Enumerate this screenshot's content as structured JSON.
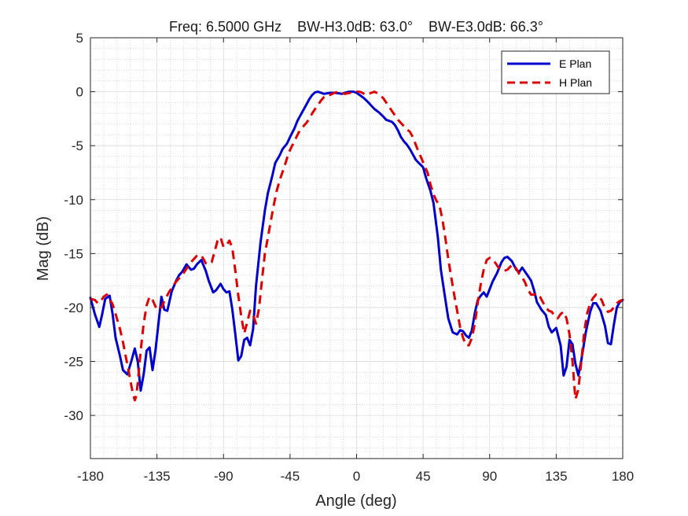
{
  "chart_data": {
    "type": "line",
    "title": "Freq: 6.5000 GHz    BW-H3.0dB: 63.0°    BW-E3.0dB: 66.3°",
    "xlabel": "Angle (deg)",
    "ylabel": "Mag (dB)",
    "xlim": [
      -180,
      180
    ],
    "ylim": [
      -34,
      5
    ],
    "xticks": [
      -180,
      -135,
      -90,
      -45,
      0,
      45,
      90,
      135,
      180
    ],
    "yticks": [
      5,
      0,
      -5,
      -10,
      -15,
      -20,
      -25,
      -30
    ],
    "grid": true,
    "minor_grid": true,
    "legend_position": "top-right",
    "series": [
      {
        "name": "E Plan",
        "color": "#0000cc",
        "style": "solid",
        "x": [
          -180,
          -177,
          -174,
          -172,
          -170,
          -167,
          -165,
          -163,
          -160,
          -158,
          -155,
          -152,
          -150,
          -148,
          -146,
          -144,
          -142,
          -140,
          -138,
          -136,
          -134,
          -132,
          -130,
          -128,
          -125,
          -122,
          -120,
          -118,
          -115,
          -112,
          -110,
          -108,
          -105,
          -102,
          -100,
          -97,
          -95,
          -92,
          -90,
          -88,
          -86,
          -84,
          -82,
          -80,
          -78,
          -76,
          -74,
          -72,
          -70,
          -68,
          -65,
          -62,
          -60,
          -57,
          -55,
          -52,
          -50,
          -47,
          -45,
          -42,
          -40,
          -38,
          -36,
          -34,
          -32,
          -30,
          -28,
          -26,
          -24,
          -22,
          -20,
          -18,
          -15,
          -12,
          -10,
          -8,
          -5,
          -2,
          0,
          2,
          5,
          8,
          10,
          12,
          15,
          18,
          20,
          22,
          24,
          26,
          28,
          30,
          32,
          34,
          36,
          38,
          40,
          42,
          45,
          47,
          50,
          52,
          55,
          57,
          60,
          62,
          65,
          68,
          70,
          72,
          74,
          76,
          78,
          80,
          82,
          84,
          86,
          88,
          90,
          92,
          95,
          98,
          100,
          102,
          105,
          108,
          110,
          112,
          115,
          118,
          120,
          122,
          125,
          128,
          130,
          132,
          135,
          138,
          140,
          142,
          144,
          146,
          148,
          150,
          152,
          155,
          158,
          160,
          162,
          165,
          168,
          170,
          172,
          174,
          176,
          178,
          180
        ],
        "values": [
          -19.1,
          -20.6,
          -21.8,
          -20.6,
          -19.2,
          -18.9,
          -20.6,
          -22.8,
          -24.5,
          -25.8,
          -26.2,
          -24.8,
          -23.8,
          -25.0,
          -27.7,
          -26.2,
          -24.0,
          -23.7,
          -25.8,
          -24.0,
          -21.5,
          -19.0,
          -20.2,
          -20.3,
          -18.5,
          -17.5,
          -17.0,
          -16.7,
          -16.0,
          -16.5,
          -16.4,
          -16.0,
          -15.6,
          -16.6,
          -17.5,
          -18.6,
          -18.4,
          -17.8,
          -18.3,
          -18.6,
          -18.5,
          -20.2,
          -22.5,
          -24.9,
          -24.5,
          -23.0,
          -22.8,
          -23.5,
          -22.0,
          -18.0,
          -14.0,
          -11.0,
          -9.4,
          -7.8,
          -6.6,
          -5.9,
          -5.3,
          -4.8,
          -4.2,
          -3.4,
          -2.7,
          -2.2,
          -1.7,
          -1.2,
          -0.7,
          -0.3,
          -0.05,
          0.0,
          -0.1,
          -0.2,
          -0.15,
          -0.1,
          -0.1,
          -0.15,
          -0.2,
          -0.1,
          0.0,
          0.0,
          -0.1,
          -0.3,
          -0.6,
          -1.0,
          -1.3,
          -1.6,
          -1.9,
          -2.3,
          -2.6,
          -2.7,
          -2.8,
          -3.1,
          -3.6,
          -4.2,
          -4.6,
          -4.9,
          -5.3,
          -5.8,
          -6.3,
          -6.6,
          -7.0,
          -8.0,
          -9.2,
          -10.3,
          -13.5,
          -16.5,
          -19.2,
          -21.0,
          -22.3,
          -22.5,
          -22.1,
          -22.2,
          -22.6,
          -22.8,
          -22.1,
          -20.5,
          -19.3,
          -18.9,
          -18.6,
          -19.0,
          -18.3,
          -17.6,
          -16.8,
          -15.8,
          -15.4,
          -15.3,
          -15.7,
          -16.5,
          -16.7,
          -16.3,
          -16.9,
          -17.5,
          -18.4,
          -19.5,
          -20.2,
          -20.7,
          -21.8,
          -22.3,
          -21.9,
          -23.5,
          -26.3,
          -25.5,
          -23.0,
          -23.4,
          -25.2,
          -26.3,
          -24.9,
          -22.3,
          -20.4,
          -19.6,
          -19.6,
          -20.3,
          -21.7,
          -23.3,
          -23.4,
          -21.6,
          -20.0,
          -19.5,
          -19.3
        ]
      },
      {
        "name": "H Plan",
        "color": "#dd0000",
        "style": "dashed",
        "x": [
          -180,
          -177,
          -175,
          -173,
          -171,
          -169,
          -167,
          -165,
          -163,
          -160,
          -158,
          -156,
          -154,
          -152,
          -150,
          -149,
          -148,
          -146,
          -144,
          -142,
          -140,
          -138,
          -135,
          -132,
          -130,
          -127,
          -125,
          -122,
          -120,
          -117,
          -115,
          -112,
          -110,
          -108,
          -106,
          -104,
          -102,
          -100,
          -98,
          -96,
          -94,
          -92,
          -90,
          -88,
          -86,
          -84,
          -82,
          -80,
          -78,
          -76,
          -74,
          -72,
          -70,
          -68,
          -66,
          -64,
          -62,
          -60,
          -58,
          -56,
          -54,
          -52,
          -50,
          -48,
          -46,
          -44,
          -42,
          -40,
          -38,
          -36,
          -34,
          -32,
          -30,
          -28,
          -26,
          -24,
          -22,
          -20,
          -18,
          -15,
          -12,
          -10,
          -8,
          -6,
          -4,
          -2,
          0,
          2,
          4,
          6,
          8,
          10,
          12,
          15,
          18,
          20,
          22,
          24,
          26,
          28,
          30,
          32,
          34,
          36,
          38,
          40,
          42,
          44,
          46,
          48,
          50,
          52,
          54,
          56,
          58,
          60,
          62,
          64,
          66,
          68,
          70,
          72,
          74,
          76,
          78,
          80,
          82,
          84,
          86,
          88,
          90,
          92,
          94,
          96,
          98,
          100,
          102,
          104,
          106,
          108,
          110,
          112,
          114,
          116,
          118,
          120,
          122,
          124,
          126,
          128,
          130,
          132,
          134,
          136,
          138,
          140,
          142,
          144,
          146,
          148,
          150,
          152,
          154,
          156,
          158,
          160,
          162,
          164,
          166,
          168,
          170,
          172,
          174,
          176,
          178,
          180
        ],
        "values": [
          -19.2,
          -19.3,
          -19.6,
          -19.4,
          -19.0,
          -18.8,
          -19.2,
          -19.7,
          -20.6,
          -22.0,
          -23.2,
          -24.6,
          -26.0,
          -27.5,
          -28.6,
          -28.2,
          -27.0,
          -24.0,
          -21.5,
          -19.8,
          -19.0,
          -19.3,
          -20.2,
          -20.0,
          -19.4,
          -18.6,
          -18.2,
          -17.6,
          -17.3,
          -16.8,
          -16.4,
          -15.8,
          -15.5,
          -15.2,
          -15.1,
          -15.4,
          -15.9,
          -16.0,
          -15.8,
          -14.8,
          -13.8,
          -13.5,
          -14.4,
          -14.2,
          -13.8,
          -14.5,
          -16.6,
          -18.9,
          -20.8,
          -22.4,
          -21.4,
          -20.3,
          -20.7,
          -21.5,
          -20.1,
          -17.5,
          -15.0,
          -13.5,
          -12.0,
          -10.5,
          -9.2,
          -8.2,
          -7.4,
          -6.6,
          -5.7,
          -5.1,
          -4.6,
          -4.0,
          -3.5,
          -3.2,
          -2.9,
          -2.5,
          -2.0,
          -1.6,
          -1.2,
          -0.8,
          -0.5,
          -0.3,
          -0.3,
          -0.1,
          0.0,
          -0.1,
          -0.2,
          -0.15,
          -0.1,
          -0.05,
          0.0,
          0.0,
          -0.1,
          -0.3,
          -0.2,
          -0.1,
          0.0,
          -0.2,
          -0.6,
          -1.0,
          -1.4,
          -1.8,
          -2.2,
          -2.6,
          -2.9,
          -3.2,
          -3.5,
          -3.7,
          -4.2,
          -4.9,
          -5.6,
          -6.2,
          -6.9,
          -7.5,
          -8.6,
          -9.5,
          -10.1,
          -10.5,
          -11.8,
          -13.5,
          -15.5,
          -17.2,
          -18.8,
          -20.3,
          -21.8,
          -22.8,
          -23.5,
          -23.5,
          -22.8,
          -21.5,
          -19.5,
          -17.8,
          -16.5,
          -15.6,
          -15.4,
          -15.5,
          -15.9,
          -16.3,
          -16.5,
          -16.6,
          -16.5,
          -16.2,
          -16.0,
          -16.4,
          -16.9,
          -17.2,
          -17.7,
          -18.4,
          -18.8,
          -18.8,
          -18.7,
          -19.0,
          -19.5,
          -20.0,
          -20.3,
          -20.4,
          -20.8,
          -21.0,
          -20.6,
          -20.4,
          -21.0,
          -22.5,
          -25.0,
          -28.5,
          -27.6,
          -25.0,
          -22.2,
          -20.5,
          -19.6,
          -19.1,
          -18.8,
          -18.9,
          -19.4,
          -20.1,
          -20.4,
          -20.3,
          -20.0,
          -19.6,
          -19.4,
          -19.3
        ]
      }
    ]
  }
}
